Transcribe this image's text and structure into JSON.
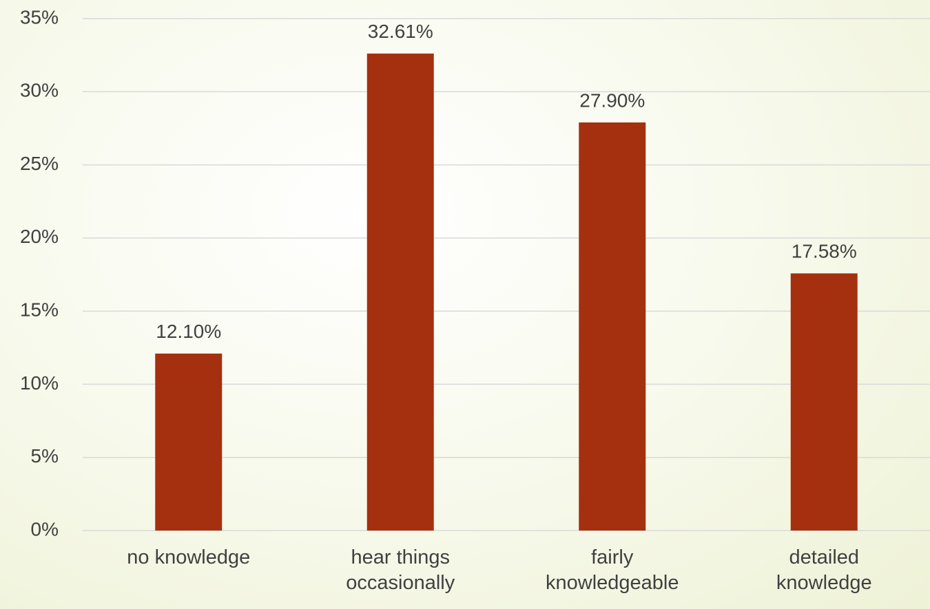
{
  "chart_data": {
    "type": "bar",
    "categories": [
      "no knowledge",
      "hear things occasionally",
      "fairly knowledgeable",
      "detailed knowledge"
    ],
    "values": [
      12.1,
      32.61,
      27.9,
      17.58
    ],
    "value_labels": [
      "12.10%",
      "32.61%",
      "27.90%",
      "17.58%"
    ],
    "color": "#a5300f",
    "ylim": [
      0,
      35
    ],
    "yticks": [
      {
        "value": 0,
        "label": "0%"
      },
      {
        "value": 5,
        "label": "5%"
      },
      {
        "value": 10,
        "label": "10%"
      },
      {
        "value": 15,
        "label": "15%"
      },
      {
        "value": 20,
        "label": "20%"
      },
      {
        "value": 25,
        "label": "25%"
      },
      {
        "value": 30,
        "label": "30%"
      },
      {
        "value": 35,
        "label": "35%"
      }
    ],
    "grid": true
  }
}
